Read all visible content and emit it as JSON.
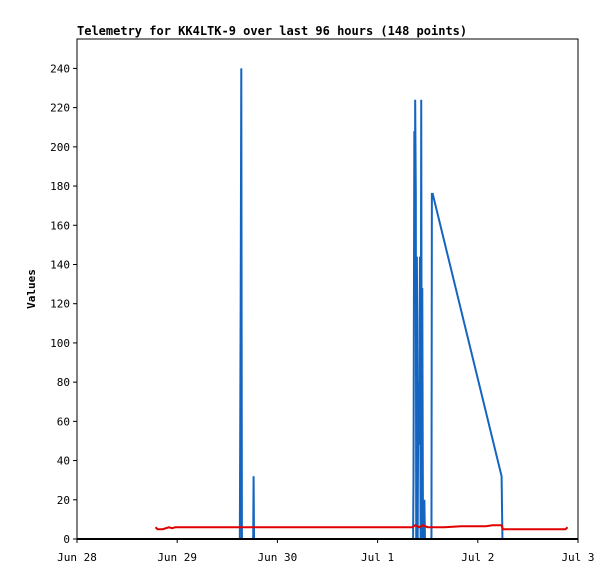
{
  "chart_data": {
    "type": "line",
    "title": "Telemetry for KK4LTK-9 over last 96 hours (148 points)",
    "xlabel": "",
    "ylabel": "Values",
    "x_tick_labels": [
      "Jun 28",
      "Jun 29",
      "Jun 30",
      "Jul 1",
      "Jul 2",
      "Jul 3"
    ],
    "x_ticks_hours": [
      0,
      24,
      48,
      72,
      96,
      120
    ],
    "xlim_hours": [
      0,
      120
    ],
    "ylim": [
      0,
      255
    ],
    "y_ticks": [
      0,
      20,
      40,
      60,
      80,
      100,
      120,
      140,
      160,
      180,
      200,
      220,
      240
    ],
    "grid": false,
    "legend": "none",
    "series": [
      {
        "color": "#1565c0",
        "x_hours": [
          39.0,
          39.2,
          39.35,
          39.5,
          39.7,
          42.2,
          42.3,
          42.4,
          80.5,
          80.6,
          80.8,
          80.9,
          81.0,
          81.15,
          81.25,
          81.4,
          81.5,
          81.6,
          81.75,
          81.9,
          82.0,
          82.15,
          82.3,
          82.45,
          82.6,
          82.7,
          82.85,
          83.0,
          83.1,
          83.2,
          83.35,
          83.5,
          84.9,
          85.0,
          85.1,
          85.2,
          101.7,
          101.9
        ],
        "values": [
          0,
          120,
          240,
          0,
          0,
          0,
          32,
          0,
          0,
          32,
          208,
          120,
          224,
          176,
          0,
          144,
          112,
          0,
          80,
          48,
          64,
          144,
          0,
          224,
          0,
          128,
          20,
          0,
          0,
          20,
          0,
          0,
          0,
          176,
          176,
          176,
          32,
          0
        ]
      },
      {
        "color": "#e00000",
        "x_hours": [
          18.8,
          19.3,
          20.5,
          22.0,
          22.8,
          23.5,
          24.5,
          25.0,
          34.5,
          50.0,
          60.0,
          70.0,
          80.3,
          81.0,
          82.0,
          82.8,
          84.0,
          85.0,
          88.0,
          92.0,
          96.0,
          98.0,
          99.5,
          101.7,
          102.0,
          108.0,
          117.0,
          117.5
        ],
        "values": [
          6,
          5,
          5,
          6,
          5.5,
          6,
          6,
          6,
          6,
          6,
          6,
          6,
          6,
          7,
          6,
          7,
          6,
          6,
          6,
          6.5,
          6.5,
          6.5,
          7,
          7,
          5,
          5,
          5,
          6
        ]
      },
      {
        "color": "#000000",
        "x_hours": [
          0,
          120
        ],
        "values": [
          0,
          0
        ]
      }
    ]
  }
}
